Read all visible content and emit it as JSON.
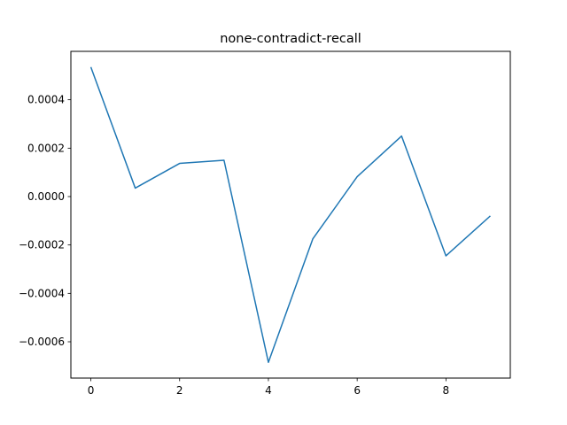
{
  "chart_data": {
    "type": "line",
    "title": "none-contradict-recall",
    "xlabel": "",
    "ylabel": "",
    "x": [
      0,
      1,
      2,
      3,
      4,
      5,
      6,
      7,
      8,
      9
    ],
    "series": [
      {
        "values": [
          0.000535,
          3.5e-05,
          0.000137,
          0.00015,
          -0.000685,
          -0.000175,
          8.2e-05,
          0.00025,
          -0.000245,
          -8e-05
        ],
        "color": "#1f77b4"
      }
    ],
    "xlim": [
      -0.45,
      9.45
    ],
    "ylim": [
      -0.00075,
      0.0006
    ],
    "x_ticks": [
      0,
      2,
      4,
      6,
      8
    ],
    "x_tick_labels": [
      "0",
      "2",
      "4",
      "6",
      "8"
    ],
    "y_ticks": [
      -0.0006,
      -0.0004,
      -0.0002,
      0.0,
      0.0002,
      0.0004
    ],
    "y_tick_labels": [
      "−0.0006",
      "−0.0004",
      "−0.0002",
      "0.0000",
      "0.0002",
      "0.0004"
    ],
    "grid": false,
    "legend": false
  }
}
